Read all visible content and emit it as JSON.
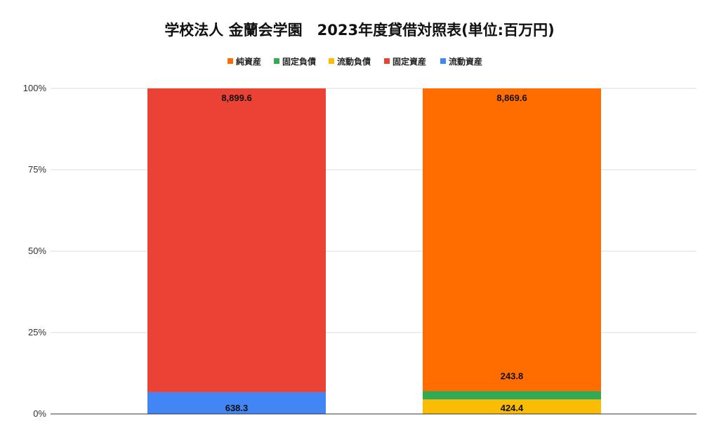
{
  "chart_data": {
    "type": "bar",
    "stacked": "percent",
    "title": "学校法人 金蘭会学園　2023年度貸借対照表(単位:百万円)",
    "legend": {
      "position": "top",
      "entries": [
        {
          "name": "純資産",
          "color": "#FF6D01"
        },
        {
          "name": "固定負債",
          "color": "#34A853"
        },
        {
          "name": "流動負債",
          "color": "#FBBC04"
        },
        {
          "name": "固定資産",
          "color": "#EA4335"
        },
        {
          "name": "流動資産",
          "color": "#4285F4"
        }
      ]
    },
    "y_ticks": [
      "0%",
      "25%",
      "50%",
      "75%",
      "100%"
    ],
    "ylim": [
      0,
      100
    ],
    "grid": true,
    "categories": [
      "",
      ""
    ],
    "bars": [
      {
        "segments": [
          {
            "name": "流動資産",
            "value": 638.3,
            "label": "638.3",
            "color": "#4285F4"
          },
          {
            "name": "固定資産",
            "value": 8899.6,
            "label": "8,899.6",
            "color": "#EA4335"
          }
        ]
      },
      {
        "segments": [
          {
            "name": "流動負債",
            "value": 424.4,
            "label": "424.4",
            "color": "#FBBC04"
          },
          {
            "name": "固定負債",
            "value": 243.8,
            "label": "243.8",
            "color": "#34A853"
          },
          {
            "name": "純資産",
            "value": 8869.6,
            "label": "8,869.6",
            "color": "#FF6D01"
          }
        ]
      }
    ]
  }
}
